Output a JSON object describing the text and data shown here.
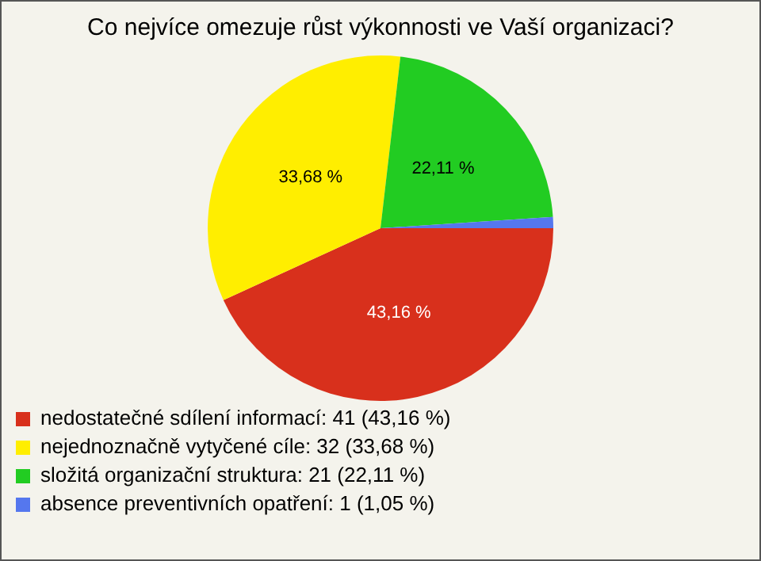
{
  "chart_data": {
    "type": "pie",
    "title": "Co nejvíce omezuje růst výkonnosti ve Vaší organizaci?",
    "categories": [
      "nedostatečné sdílení informací: 41 (43,16 %)",
      "nejednoznačně vytyčené cíle: 32 (33,68 %)",
      "složitá organizační struktura: 21 (22,11 %)",
      "absence preventivních opatření: 1 (1,05 %)"
    ],
    "values": [
      43.16,
      33.68,
      22.11,
      1.05
    ],
    "colors": [
      "#d8301c",
      "#ffee00",
      "#22cc22",
      "#5577ee"
    ],
    "value_labels": [
      "43,16 %",
      "33,68 %",
      "22,11 %",
      null
    ],
    "legend": "bottom left"
  }
}
